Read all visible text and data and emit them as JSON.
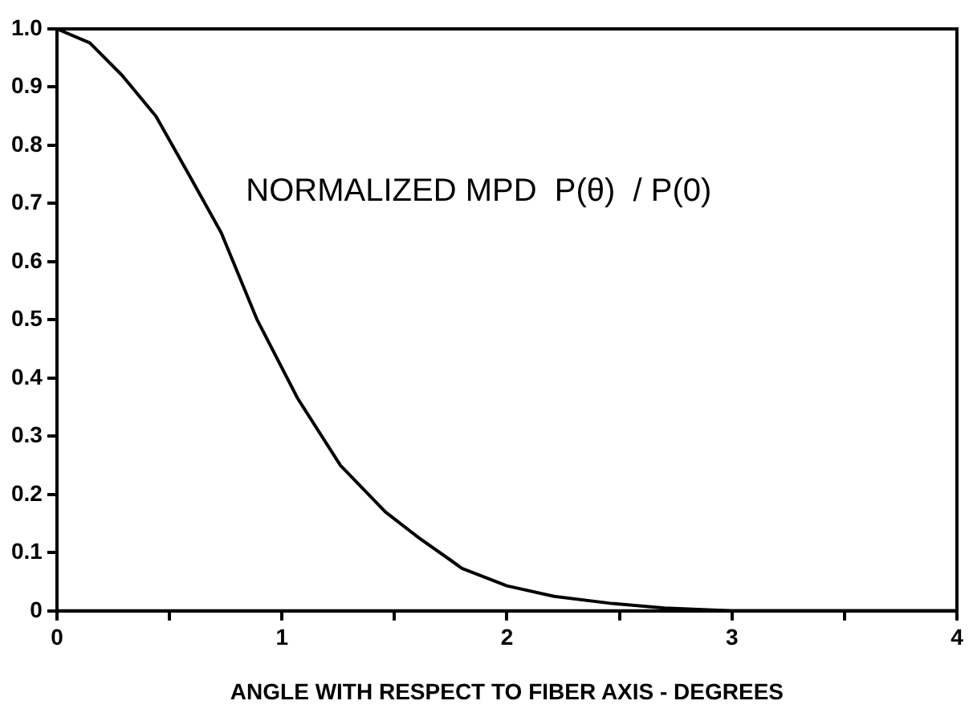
{
  "chart_data": {
    "type": "line",
    "xlabel": "ANGLE WITH RESPECT TO FIBER AXIS - DEGREES",
    "annotations": [
      "NORMALIZED MPD  P(θ)  / P(0)"
    ],
    "series": [
      {
        "color": "#000000",
        "x": [
          0,
          0.146,
          0.29,
          0.44,
          0.58,
          0.73,
          0.89,
          1.07,
          1.26,
          1.46,
          1.61,
          1.75,
          1.8,
          2.0,
          2.21,
          2.46,
          2.7,
          3.0,
          3.5,
          4.0
        ],
        "values": [
          1.0,
          0.976,
          0.92,
          0.85,
          0.754,
          0.65,
          0.5,
          0.365,
          0.25,
          0.17,
          0.125,
          0.087,
          0.073,
          0.043,
          0.025,
          0.013,
          0.005,
          0,
          0,
          0
        ]
      }
    ],
    "xlim": [
      0,
      4
    ],
    "xticks": [
      0,
      {
        "value": 0.5,
        "label": null
      },
      1,
      {
        "value": 1.5,
        "label": null
      },
      2,
      {
        "value": 2.5,
        "label": null
      },
      3,
      {
        "value": 3.5,
        "label": null
      },
      4
    ],
    "ylim": [
      0,
      1
    ],
    "yticks": [
      0,
      0.1,
      0.2,
      0.3,
      0.4,
      0.5,
      0.6,
      0.7,
      0.8,
      0.9,
      {
        "value": 1,
        "label": "1.0"
      }
    ],
    "grid": false,
    "legend": false,
    "marker": "none",
    "line_style": "solid"
  }
}
